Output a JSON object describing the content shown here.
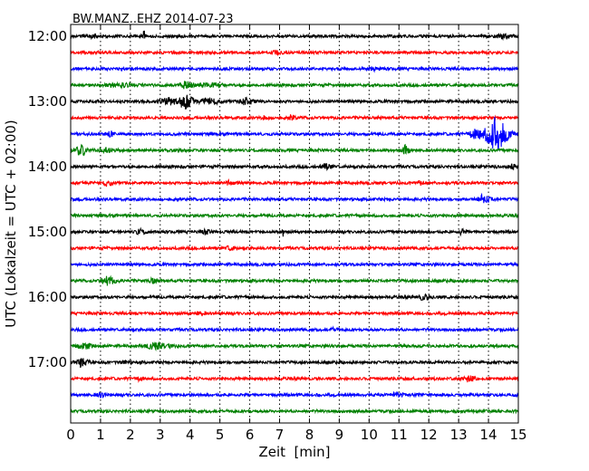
{
  "chart_data": {
    "type": "line",
    "subtype": "seismogram-dayplot",
    "title": "BW.MANZ..EHZ 2014-07-23",
    "xlabel": "Zeit  [min]",
    "ylabel": "UTC (Lokalzeit = UTC + 02:00)",
    "xlim": [
      0,
      15
    ],
    "xticks": [
      "0",
      "1",
      "2",
      "3",
      "4",
      "5",
      "6",
      "7",
      "8",
      "9",
      "10",
      "11",
      "12",
      "13",
      "14",
      "15"
    ],
    "yticks": [
      "12:00",
      "13:00",
      "14:00",
      "15:00",
      "16:00",
      "17:00"
    ],
    "grid": "vertical-dotted",
    "colors": [
      "#000000",
      "#ff0000",
      "#0000ff",
      "#008000"
    ],
    "rows": [
      {
        "start": "12:00",
        "events": [
          [
            2.45,
            7,
            0.05
          ],
          [
            0.6,
            1.5,
            0.4
          ],
          [
            14.4,
            2,
            0.3
          ]
        ]
      },
      {
        "start": "12:15",
        "events": [
          [
            6.9,
            2,
            0.25
          ]
        ]
      },
      {
        "start": "12:30",
        "events": [
          [
            10.1,
            1.5,
            0.3
          ]
        ]
      },
      {
        "start": "12:45",
        "events": [
          [
            1.8,
            2,
            0.4
          ],
          [
            3.8,
            3.5,
            0.4
          ],
          [
            4.6,
            2,
            0.6
          ],
          [
            1.3,
            1.5,
            0.3
          ]
        ]
      },
      {
        "start": "13:00",
        "events": [
          [
            3.8,
            9,
            0.35
          ],
          [
            3.2,
            4,
            0.4
          ],
          [
            5.8,
            4,
            0.4
          ],
          [
            4.6,
            3,
            0.5
          ]
        ]
      },
      {
        "start": "13:15",
        "events": [
          [
            7.4,
            2,
            0.2
          ],
          [
            6.5,
            1.3,
            0.3
          ]
        ]
      },
      {
        "start": "13:30",
        "events": [
          [
            1.3,
            3,
            0.2
          ],
          [
            14.2,
            18,
            0.55
          ],
          [
            13.6,
            6,
            0.5
          ]
        ]
      },
      {
        "start": "13:45",
        "events": [
          [
            0.3,
            5,
            0.35
          ],
          [
            11.2,
            5,
            0.2
          ],
          [
            1.1,
            2,
            0.4
          ]
        ]
      },
      {
        "start": "14:00",
        "events": [
          [
            8.5,
            2.5,
            0.3
          ],
          [
            14.8,
            2,
            0.3
          ]
        ]
      },
      {
        "start": "14:15",
        "events": [
          [
            1.2,
            3,
            0.25
          ],
          [
            5.3,
            2,
            0.2
          ],
          [
            11.7,
            2.5,
            0.15
          ]
        ]
      },
      {
        "start": "14:30",
        "events": [
          [
            13.8,
            4,
            0.35
          ]
        ]
      },
      {
        "start": "14:45",
        "events": []
      },
      {
        "start": "15:00",
        "events": [
          [
            2.3,
            2.5,
            0.25
          ],
          [
            4.5,
            2,
            0.2
          ],
          [
            7.1,
            5,
            0.05
          ],
          [
            13.1,
            2.5,
            0.2
          ]
        ]
      },
      {
        "start": "15:15",
        "events": [
          [
            5.3,
            2,
            0.25
          ]
        ]
      },
      {
        "start": "15:30",
        "events": []
      },
      {
        "start": "15:45",
        "events": [
          [
            1.2,
            4,
            0.35
          ],
          [
            2.7,
            2,
            0.3
          ]
        ]
      },
      {
        "start": "16:00",
        "events": [
          [
            11.8,
            2.5,
            0.35
          ]
        ]
      },
      {
        "start": "16:15",
        "events": [
          [
            4.3,
            1.5,
            0.2
          ]
        ]
      },
      {
        "start": "16:30",
        "events": [
          [
            8.8,
            1.5,
            0.2
          ]
        ]
      },
      {
        "start": "16:45",
        "events": [
          [
            0.4,
            3,
            0.4
          ],
          [
            2.8,
            3,
            0.6
          ]
        ]
      },
      {
        "start": "17:00",
        "events": [
          [
            0.3,
            5,
            0.3
          ],
          [
            1.8,
            2,
            0.2
          ]
        ]
      },
      {
        "start": "17:15",
        "events": [
          [
            13.3,
            2.5,
            0.3
          ],
          [
            2.3,
            1.3,
            0.2
          ]
        ]
      },
      {
        "start": "17:30",
        "events": [
          [
            1.0,
            2,
            0.3
          ],
          [
            10.9,
            2,
            0.3
          ]
        ]
      },
      {
        "start": "17:45",
        "events": []
      }
    ]
  }
}
